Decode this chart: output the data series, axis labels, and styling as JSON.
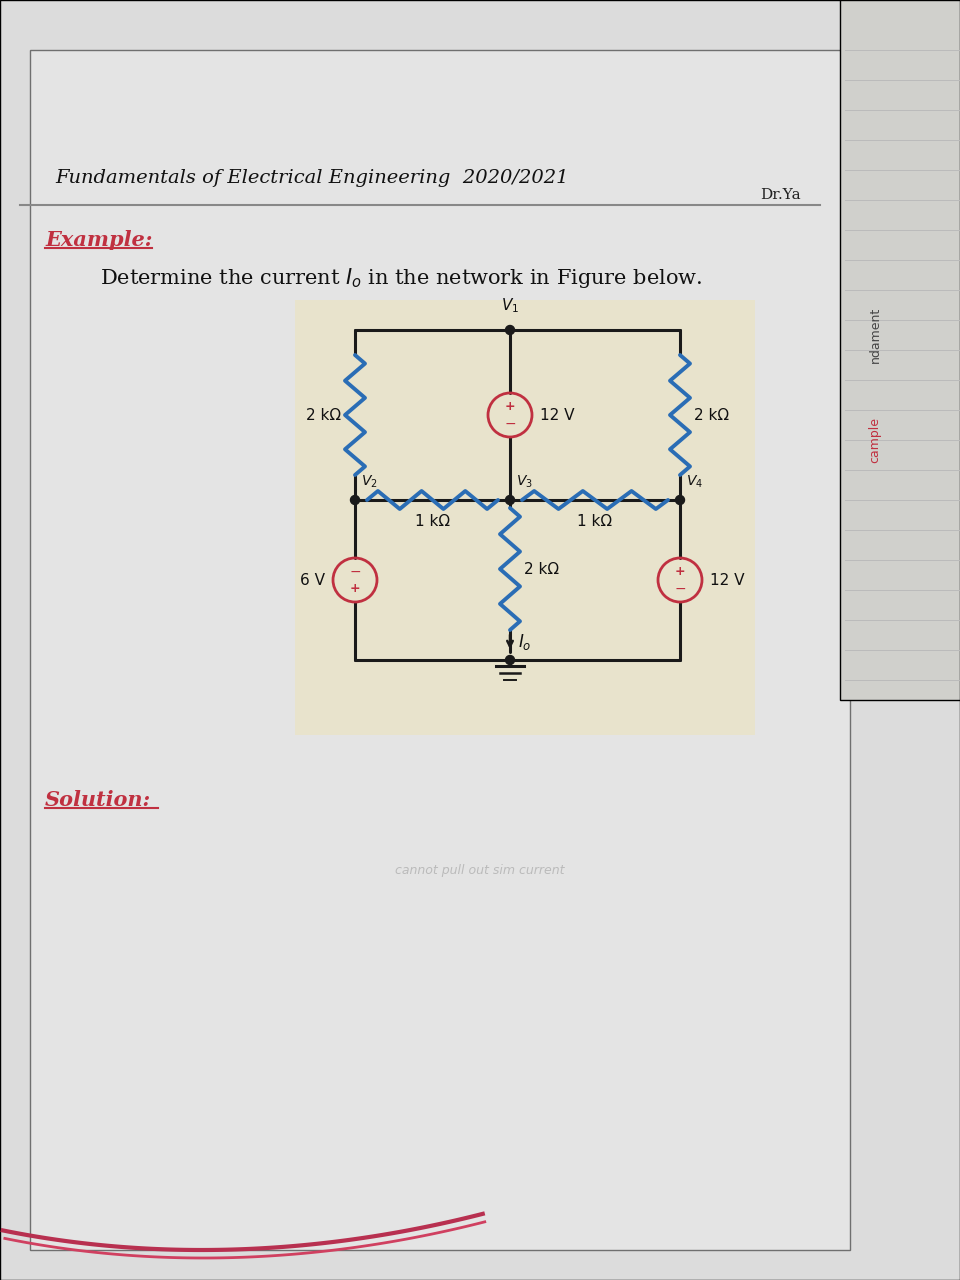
{
  "bg_left_color": "#c8c8c8",
  "bg_right_color": "#e8e8e8",
  "bg_page_color": "#e0dede",
  "bg_circuit_color": "#e8e3cc",
  "header_text": "Fundamentals of Electrical Engineering  2020/2021",
  "header_sub": "Dr.Ya",
  "example_label": "Example:",
  "problem_text": "Determine the current $I_o$ in the network in Figure below.",
  "solution_label": "Solution:",
  "wire_color": "#1a1a1a",
  "resistor_blue_color": "#2a6db5",
  "source_red_color": "#c03040",
  "header_arc_color1": "#b83050",
  "header_arc_color2": "#d04060",
  "header_line_color": "#666666",
  "example_color": "#c03040",
  "side_text_color": "#555555",
  "side_example_color": "#c03040",
  "note_text_color": "#888888"
}
